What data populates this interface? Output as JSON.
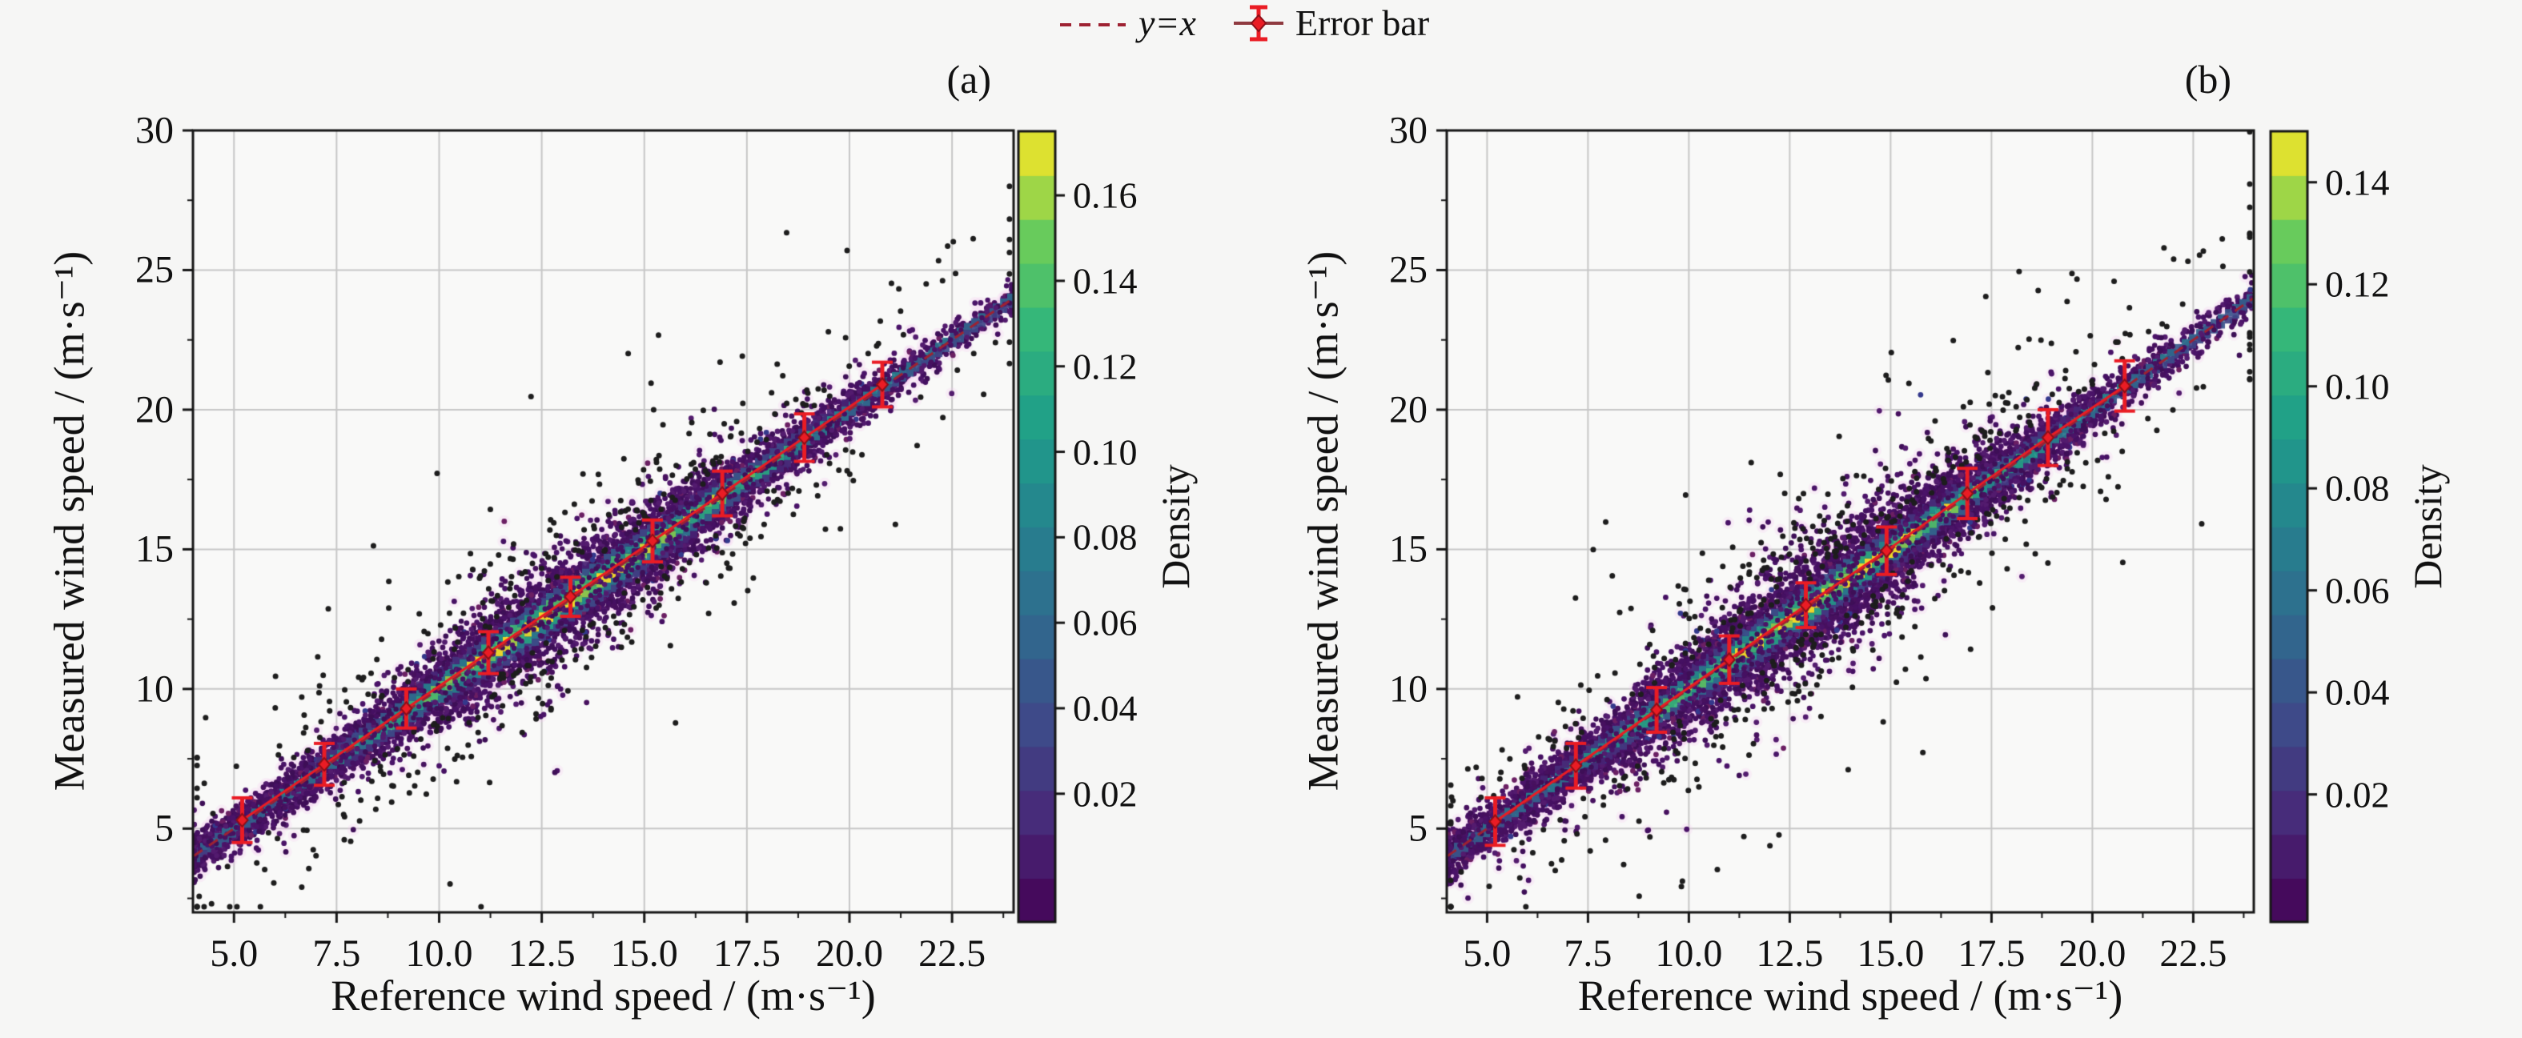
{
  "figure": {
    "background": "#f6f6f5",
    "plot_background": "#f9f9f8",
    "grid_color": "#c7c7c7",
    "spine_color": "#161616",
    "text_color": "#111111"
  },
  "legend": {
    "items": [
      {
        "label": "y=x",
        "type": "dashed-line",
        "color": "#9e2232"
      },
      {
        "label": "Error bar",
        "type": "errorbar",
        "color": "#ea1c24"
      }
    ]
  },
  "chart_data": [
    {
      "type": "scatter",
      "panel_label": "(a)",
      "xlabel": "Reference wind speed / (m·s⁻¹)",
      "ylabel": "Measured wind speed / (m·s⁻¹)",
      "xlim": [
        4,
        24
      ],
      "ylim": [
        2,
        30
      ],
      "x_ticks": [
        5.0,
        7.5,
        10.0,
        12.5,
        15.0,
        17.5,
        20.0,
        22.5
      ],
      "x_tick_labels": [
        "5.0",
        "7.5",
        "10.0",
        "12.5",
        "15.0",
        "17.5",
        "20.0",
        "22.5"
      ],
      "y_ticks": [
        5,
        10,
        15,
        20,
        25,
        30
      ],
      "y_tick_labels": [
        "5",
        "10",
        "15",
        "20",
        "25",
        "30"
      ],
      "grid": true,
      "identity_line": {
        "label": "y=x",
        "color": "#9e2232",
        "dashed": true
      },
      "errorbars": {
        "color": "#ea1c24",
        "x": [
          5.2,
          7.2,
          9.2,
          11.2,
          13.2,
          15.2,
          16.9,
          18.9,
          20.8
        ],
        "y": [
          5.3,
          7.3,
          9.3,
          11.3,
          13.3,
          15.3,
          17.0,
          19.0,
          20.9
        ],
        "yerr": [
          0.8,
          0.75,
          0.7,
          0.75,
          0.7,
          0.75,
          0.8,
          0.85,
          0.8
        ]
      },
      "density_scatter": {
        "colormap": "viridis",
        "n_points": 5600,
        "n_outliers": 430,
        "noise_sd": 0.62,
        "seed": 101,
        "point_color_low": "#451062",
        "outlier_color": "#1d1d1d"
      },
      "colorbar": {
        "label": "Density",
        "ticks": [
          0.02,
          0.04,
          0.06,
          0.08,
          0.1,
          0.12,
          0.14,
          0.16
        ],
        "tick_labels": [
          "0.02",
          "0.04",
          "0.06",
          "0.08",
          "0.10",
          "0.12",
          "0.14",
          "0.16"
        ],
        "vmin": -0.01,
        "vmax": 0.175,
        "n_segments": 18
      }
    },
    {
      "type": "scatter",
      "panel_label": "(b)",
      "xlabel": "Reference wind speed / (m·s⁻¹)",
      "ylabel": "Measured wind speed / (m·s⁻¹)",
      "xlim": [
        4,
        24
      ],
      "ylim": [
        2,
        30
      ],
      "x_ticks": [
        5.0,
        7.5,
        10.0,
        12.5,
        15.0,
        17.5,
        20.0,
        22.5
      ],
      "x_tick_labels": [
        "5.0",
        "7.5",
        "10.0",
        "12.5",
        "15.0",
        "17.5",
        "20.0",
        "22.5"
      ],
      "y_ticks": [
        5,
        10,
        15,
        20,
        25,
        30
      ],
      "y_tick_labels": [
        "5",
        "10",
        "15",
        "20",
        "25",
        "30"
      ],
      "grid": true,
      "identity_line": {
        "label": "y=x",
        "color": "#9e2232",
        "dashed": true
      },
      "errorbars": {
        "color": "#ea1c24",
        "x": [
          5.2,
          7.2,
          9.2,
          11.0,
          12.9,
          14.9,
          16.9,
          18.9,
          20.8
        ],
        "y": [
          5.25,
          7.25,
          9.25,
          11.05,
          13.0,
          14.95,
          17.0,
          19.0,
          20.85
        ],
        "yerr": [
          0.85,
          0.8,
          0.8,
          0.85,
          0.8,
          0.85,
          0.9,
          1.0,
          0.9
        ]
      },
      "density_scatter": {
        "colormap": "viridis",
        "n_points": 6000,
        "n_outliers": 520,
        "noise_sd": 0.72,
        "seed": 202,
        "point_color_low": "#451062",
        "outlier_color": "#1d1d1d"
      },
      "colorbar": {
        "label": "Density",
        "ticks": [
          0.02,
          0.04,
          0.06,
          0.08,
          0.1,
          0.12,
          0.14
        ],
        "tick_labels": [
          "0.02",
          "0.04",
          "0.06",
          "0.08",
          "0.10",
          "0.12",
          "0.14"
        ],
        "vmin": -0.005,
        "vmax": 0.15,
        "n_segments": 18
      }
    }
  ]
}
